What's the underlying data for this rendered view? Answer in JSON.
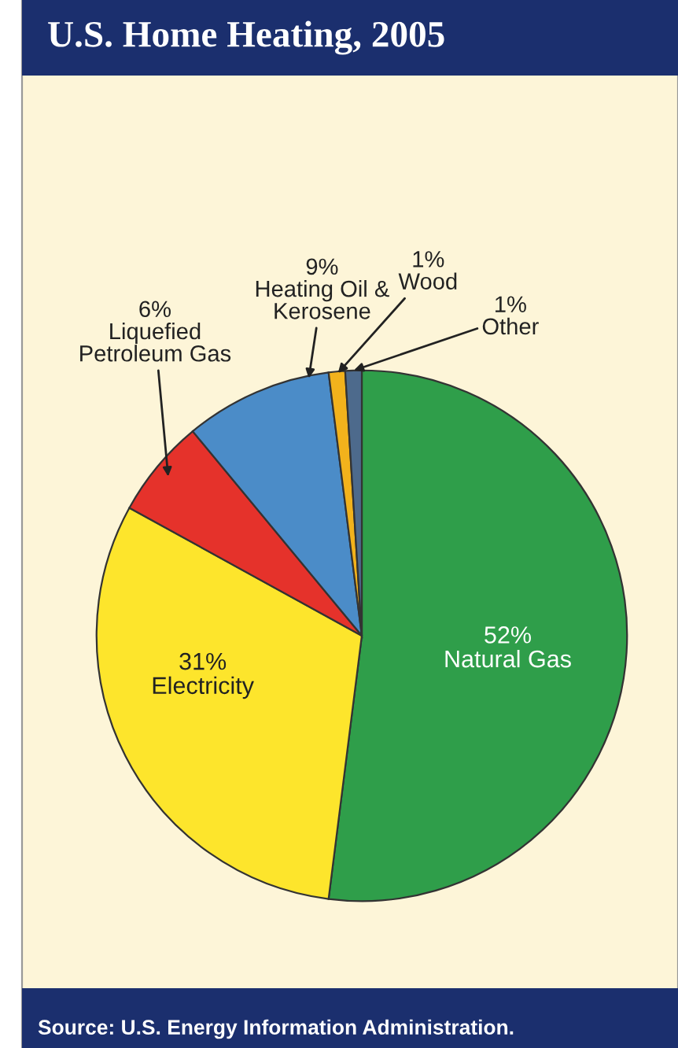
{
  "chart_data": {
    "type": "pie",
    "title": "U.S. Home Heating, 2005",
    "categories": [
      "Natural Gas",
      "Electricity",
      "Liquefied\nPetroleum Gas",
      "Heating Oil &\nKerosene",
      "Wood",
      "Other"
    ],
    "values": [
      52,
      31,
      6,
      9,
      1,
      1
    ],
    "value_labels": [
      "52%",
      "31%",
      "6%",
      "9%",
      "1%",
      "1%"
    ],
    "colors": [
      "#2f9e4a",
      "#fde52c",
      "#e5322b",
      "#4b8cc8",
      "#f2b21c",
      "#4d6a8c"
    ],
    "legend": false,
    "annotations": [
      "Source: U.S. Energy Information Administration."
    ]
  }
}
